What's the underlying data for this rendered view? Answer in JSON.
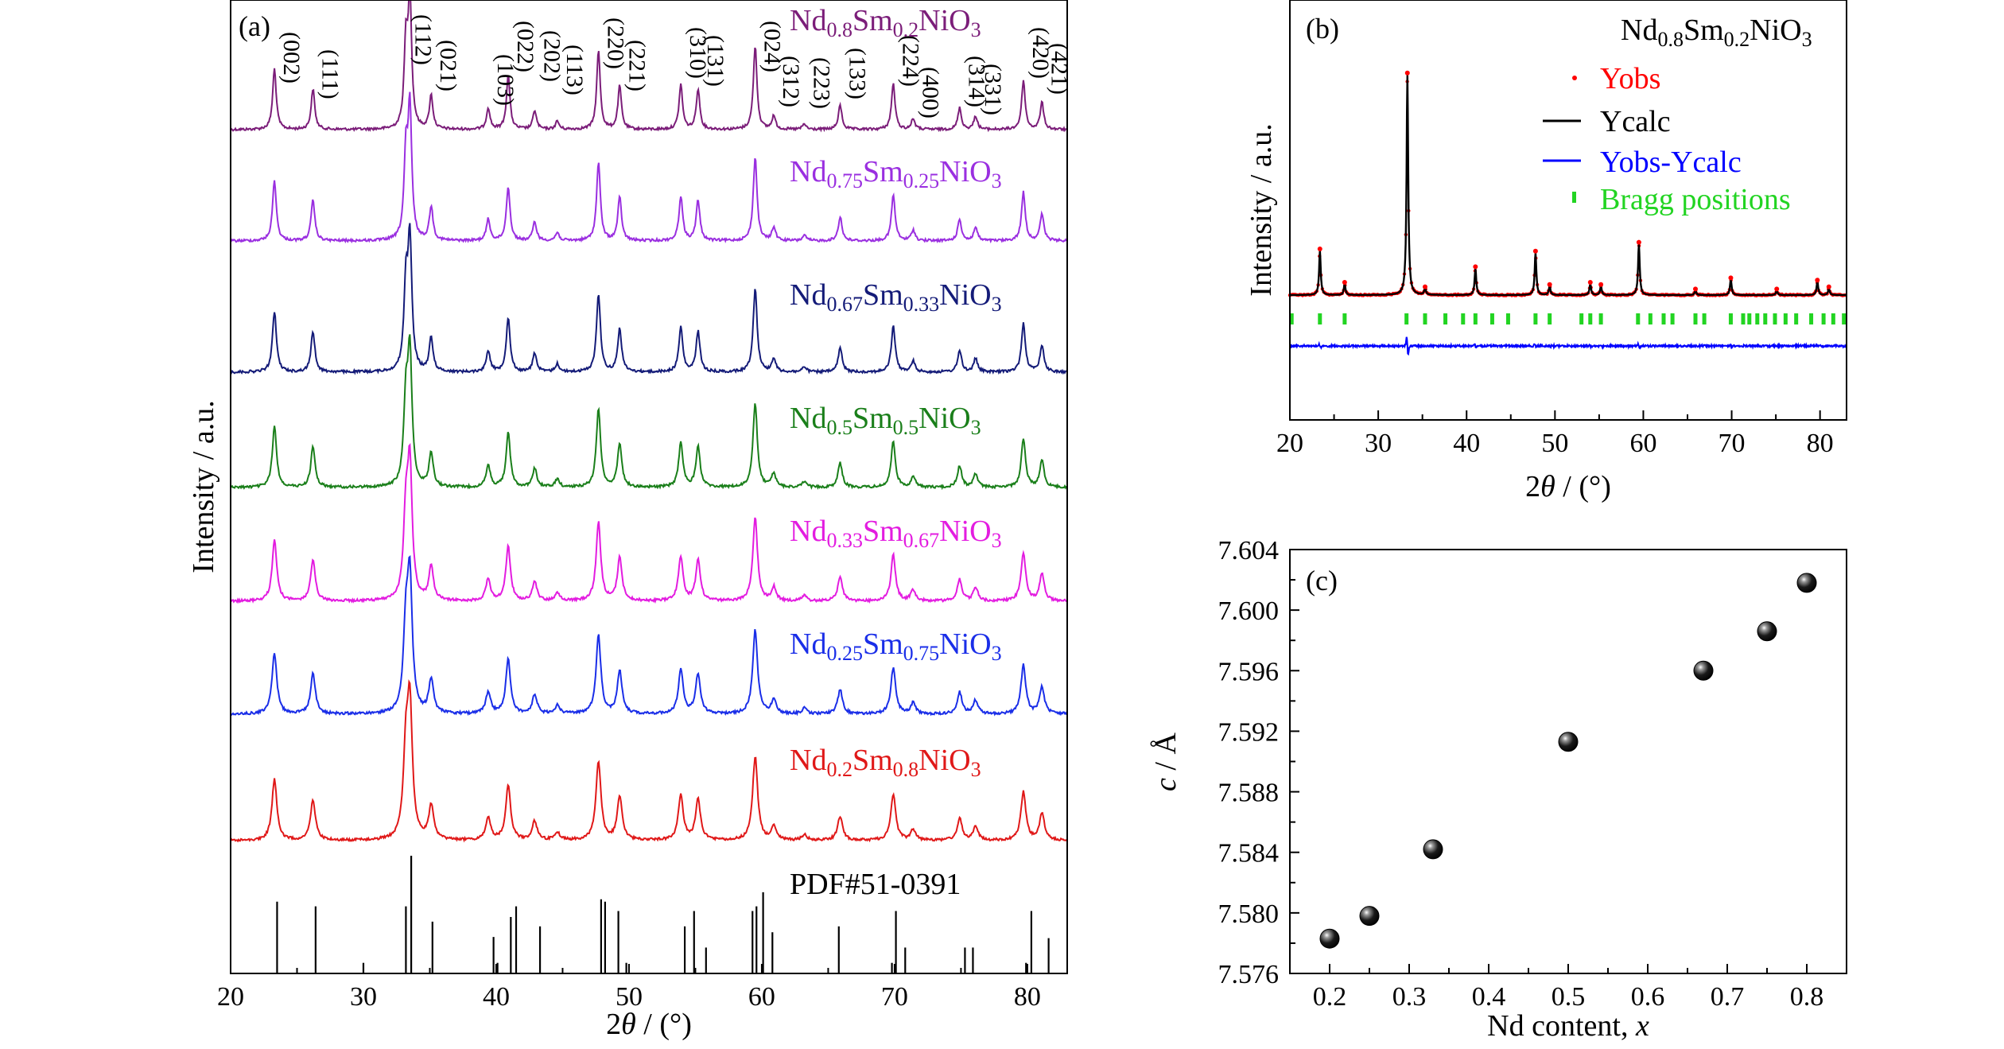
{
  "colors": {
    "Nd0.8": "#7b1d79",
    "Nd0.75": "#9a2fe0",
    "Nd0.67": "#141b78",
    "Nd0.5": "#1a7f1a",
    "Nd0.33": "#e31ce0",
    "Nd0.25": "#1a2ee8",
    "Nd0.2": "#e01818",
    "yobs": "#ff0000",
    "ycalc": "#000000",
    "diff": "#0000ff",
    "bragg": "#22d422"
  },
  "panels": {
    "a": "(a)",
    "b": "(b)",
    "c": "(c)"
  },
  "chart_data": [
    {
      "type": "line",
      "panel": "(a)",
      "xlabel_pre": "2",
      "xlabel_theta": "θ",
      "xlabel_post": " / (°)",
      "ylabel": "Intensity / a.u.",
      "xlim": [
        20,
        83
      ],
      "xticks": [
        20,
        30,
        40,
        50,
        60,
        70,
        80
      ],
      "peaks": [
        {
          "x": 23.3,
          "h": 0.45,
          "hkl": "(002)"
        },
        {
          "x": 26.2,
          "h": 0.3,
          "hkl": "(111)"
        },
        {
          "x": 33.2,
          "h": 0.6,
          "hkl": "(112)"
        },
        {
          "x": 33.5,
          "h": 0.95
        },
        {
          "x": 35.1,
          "h": 0.25,
          "hkl": "(021)"
        },
        {
          "x": 39.4,
          "h": 0.16,
          "hkl": "(103)"
        },
        {
          "x": 40.9,
          "h": 0.4,
          "hkl": "(022)"
        },
        {
          "x": 42.9,
          "h": 0.14,
          "hkl": "(202)"
        },
        {
          "x": 44.6,
          "h": 0.06,
          "hkl": "(113)"
        },
        {
          "x": 47.7,
          "h": 0.58,
          "hkl": "(220)"
        },
        {
          "x": 49.3,
          "h": 0.32,
          "hkl": "(221)"
        },
        {
          "x": 53.9,
          "h": 0.33,
          "hkl": "(310)"
        },
        {
          "x": 55.2,
          "h": 0.3,
          "hkl": "(131)"
        },
        {
          "x": 59.5,
          "h": 0.62,
          "hkl": "(024)"
        },
        {
          "x": 60.9,
          "h": 0.1,
          "hkl": "(312)"
        },
        {
          "x": 63.2,
          "h": 0.04,
          "hkl": "(223)"
        },
        {
          "x": 65.9,
          "h": 0.18,
          "hkl": "(133)"
        },
        {
          "x": 69.9,
          "h": 0.34,
          "hkl": "(224)"
        },
        {
          "x": 71.4,
          "h": 0.08,
          "hkl": "(400)"
        },
        {
          "x": 74.9,
          "h": 0.16,
          "hkl": "(314)"
        },
        {
          "x": 76.1,
          "h": 0.1,
          "hkl": "(331)"
        },
        {
          "x": 79.7,
          "h": 0.36,
          "hkl": "(420)"
        },
        {
          "x": 81.1,
          "h": 0.2,
          "hkl": "(421)"
        }
      ],
      "series": [
        {
          "name_pre": "Nd",
          "sub1": "0.8",
          "name_mid": "Sm",
          "sub2": "0.2",
          "name_post": "NiO",
          "sub3": "3",
          "color_key": "Nd0.8",
          "width": 1.0
        },
        {
          "name_pre": "Nd",
          "sub1": "0.75",
          "name_mid": "Sm",
          "sub2": "0.25",
          "name_post": "NiO",
          "sub3": "3",
          "color_key": "Nd0.75",
          "width": 1.05
        },
        {
          "name_pre": "Nd",
          "sub1": "0.67",
          "name_mid": "Sm",
          "sub2": "0.33",
          "name_post": "NiO",
          "sub3": "3",
          "color_key": "Nd0.67",
          "width": 1.1
        },
        {
          "name_pre": "Nd",
          "sub1": "0.5",
          "name_mid": "Sm",
          "sub2": "0.5",
          "name_post": "NiO",
          "sub3": "3",
          "color_key": "Nd0.5",
          "width": 1.2
        },
        {
          "name_pre": "Nd",
          "sub1": "0.33",
          "name_mid": "Sm",
          "sub2": "0.67",
          "name_post": "NiO",
          "sub3": "3",
          "color_key": "Nd0.33",
          "width": 1.3
        },
        {
          "name_pre": "Nd",
          "sub1": "0.25",
          "name_mid": "Sm",
          "sub2": "0.75",
          "name_post": "NiO",
          "sub3": "3",
          "color_key": "Nd0.25",
          "width": 1.35
        },
        {
          "name_pre": "Nd",
          "sub1": "0.2",
          "name_mid": "Sm",
          "sub2": "0.8",
          "name_post": "NiO",
          "sub3": "3",
          "color_key": "Nd0.2",
          "width": 1.4
        }
      ],
      "reference": {
        "label": "PDF#51-0391",
        "lines": [
          {
            "x": 23.5,
            "h": 0.61
          },
          {
            "x": 26.4,
            "h": 0.57
          },
          {
            "x": 30.0,
            "h": 0.09
          },
          {
            "x": 33.2,
            "h": 0.57
          },
          {
            "x": 33.6,
            "h": 1.0
          },
          {
            "x": 35.2,
            "h": 0.44
          },
          {
            "x": 39.8,
            "h": 0.31
          },
          {
            "x": 40.1,
            "h": 0.09
          },
          {
            "x": 41.1,
            "h": 0.48
          },
          {
            "x": 41.5,
            "h": 0.57
          },
          {
            "x": 43.3,
            "h": 0.4
          },
          {
            "x": 47.9,
            "h": 0.63
          },
          {
            "x": 48.2,
            "h": 0.61
          },
          {
            "x": 49.2,
            "h": 0.53
          },
          {
            "x": 49.8,
            "h": 0.09
          },
          {
            "x": 54.2,
            "h": 0.4
          },
          {
            "x": 54.9,
            "h": 0.53
          },
          {
            "x": 55.8,
            "h": 0.22
          },
          {
            "x": 59.3,
            "h": 0.53
          },
          {
            "x": 59.6,
            "h": 0.57
          },
          {
            "x": 60.1,
            "h": 0.69
          },
          {
            "x": 60.8,
            "h": 0.35
          },
          {
            "x": 65.8,
            "h": 0.4
          },
          {
            "x": 69.8,
            "h": 0.09
          },
          {
            "x": 70.1,
            "h": 0.53
          },
          {
            "x": 70.8,
            "h": 0.22
          },
          {
            "x": 75.3,
            "h": 0.22
          },
          {
            "x": 75.9,
            "h": 0.22
          },
          {
            "x": 79.9,
            "h": 0.09
          },
          {
            "x": 80.3,
            "h": 0.53
          },
          {
            "x": 81.6,
            "h": 0.3
          }
        ]
      }
    },
    {
      "type": "line",
      "panel": "(b)",
      "title_pre": "Nd",
      "title_sub1": "0.8",
      "title_mid": "Sm",
      "title_sub2": "0.2",
      "title_post": "NiO",
      "title_sub3": "3",
      "xlabel_pre": "2",
      "xlabel_theta": "θ",
      "xlabel_post": " / (°)",
      "ylabel": "Intensity / a.u.",
      "xlim": [
        20,
        83
      ],
      "xticks": [
        20,
        30,
        40,
        50,
        60,
        70,
        80
      ],
      "legend": [
        "Yobs",
        "Ycalc",
        "Yobs-Ycalc",
        "Bragg positions"
      ],
      "peaks": [
        {
          "x": 23.4,
          "h": 0.2
        },
        {
          "x": 26.2,
          "h": 0.05
        },
        {
          "x": 33.3,
          "h": 0.99
        },
        {
          "x": 35.3,
          "h": 0.03
        },
        {
          "x": 41.0,
          "h": 0.12
        },
        {
          "x": 47.8,
          "h": 0.19
        },
        {
          "x": 49.4,
          "h": 0.04
        },
        {
          "x": 54.0,
          "h": 0.05
        },
        {
          "x": 55.2,
          "h": 0.04
        },
        {
          "x": 59.5,
          "h": 0.23
        },
        {
          "x": 65.9,
          "h": 0.02
        },
        {
          "x": 69.9,
          "h": 0.07
        },
        {
          "x": 75.1,
          "h": 0.02
        },
        {
          "x": 79.7,
          "h": 0.06
        },
        {
          "x": 81.0,
          "h": 0.03
        }
      ],
      "bragg": [
        20.2,
        23.4,
        26.2,
        33.2,
        35.3,
        37.6,
        39.6,
        41.0,
        42.9,
        44.7,
        47.8,
        49.4,
        53.0,
        54.0,
        55.2,
        59.4,
        60.8,
        62.3,
        63.3,
        65.9,
        66.9,
        69.9,
        71.3,
        72.0,
        72.9,
        73.8,
        74.9,
        76.1,
        77.3,
        79.0,
        80.4,
        81.5,
        82.7
      ]
    },
    {
      "type": "scatter",
      "panel": "(c)",
      "xlabel": "Nd content, ",
      "xlabel_var": "x",
      "ylabel_var": "c",
      "ylabel": " / Å",
      "xlim": [
        0.15,
        0.85
      ],
      "ylim": [
        7.576,
        7.604
      ],
      "xticks": [
        0.2,
        0.3,
        0.4,
        0.5,
        0.6,
        0.7,
        0.8
      ],
      "xtick_labels": [
        "0.2",
        "0.3",
        "0.4",
        "0.5",
        "0.6",
        "0.7",
        "0.8"
      ],
      "yticks": [
        7.576,
        7.58,
        7.584,
        7.588,
        7.592,
        7.596,
        7.6,
        7.604
      ],
      "ytick_labels": [
        "7.576",
        "7.580",
        "7.584",
        "7.588",
        "7.592",
        "7.596",
        "7.600",
        "7.604"
      ],
      "x": [
        0.2,
        0.25,
        0.33,
        0.5,
        0.67,
        0.75,
        0.8
      ],
      "y": [
        7.5783,
        7.5798,
        7.5842,
        7.5913,
        7.596,
        7.5986,
        7.6018
      ]
    }
  ]
}
